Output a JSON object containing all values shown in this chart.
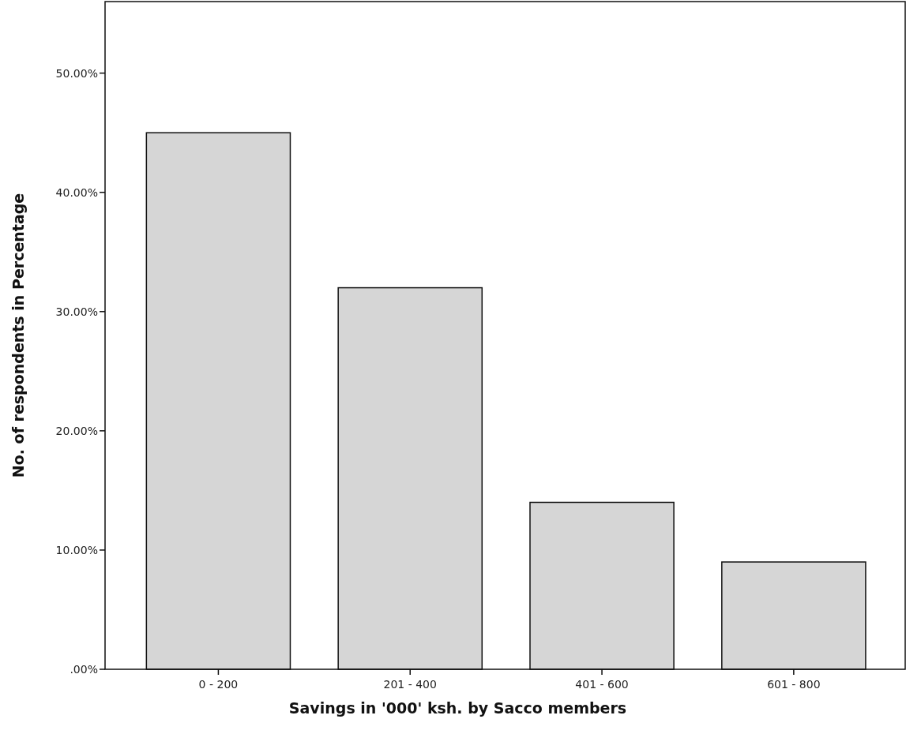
{
  "chart_data": {
    "type": "bar",
    "xlabel": "Savings in '000'  ksh. by Sacco members",
    "ylabel": "No. of respondents in Percentage",
    "categories": [
      "0 - 200",
      "201 - 400",
      "401 - 600",
      "601 - 800"
    ],
    "values": [
      45,
      32,
      14,
      9
    ],
    "color": "#d6d6d6",
    "ylim": [
      0,
      56
    ],
    "yticks": [
      {
        "value": 0,
        "label": ".00%"
      },
      {
        "value": 10,
        "label": "10.00%"
      },
      {
        "value": 20,
        "label": "20.00%"
      },
      {
        "value": 30,
        "label": "30.00%"
      },
      {
        "value": 40,
        "label": "40.00%"
      },
      {
        "value": 50,
        "label": "50.00%"
      }
    ],
    "grid": false
  }
}
